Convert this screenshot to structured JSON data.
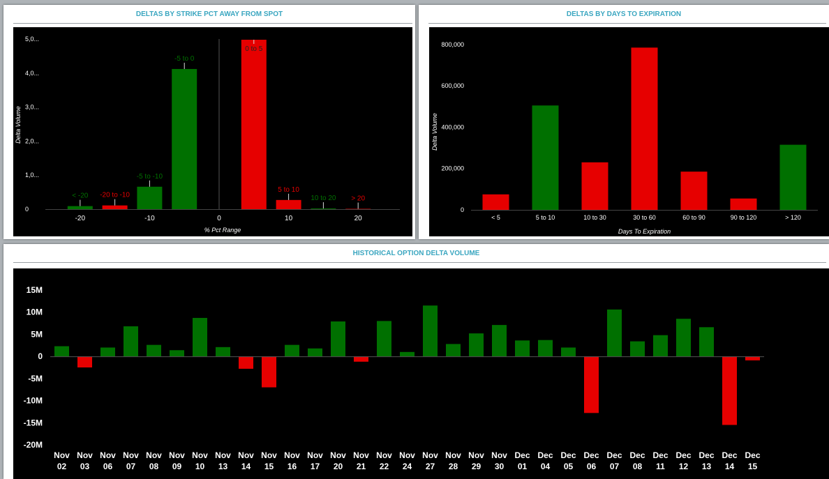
{
  "panels": {
    "strike_title": "DELTAS BY STRIKE PCT AWAY FROM SPOT",
    "dte_title": "DELTAS BY DAYS TO EXPIRATION",
    "hist_title": "HISTORICAL OPTION DELTA VOLUME"
  },
  "colors": {
    "positive": "#007000",
    "negative": "#e60000",
    "title": "#3aa6c0"
  },
  "chart_data": [
    {
      "type": "bar",
      "title": "DELTAS BY STRIKE PCT AWAY FROM SPOT",
      "xlabel": "% Pct Range",
      "ylabel": "Delta Volume",
      "ytick_labels": [
        "0",
        "1,0...",
        "2,0...",
        "3,0...",
        "4,0...",
        "5,0..."
      ],
      "yticks": [
        0,
        1000000,
        2000000,
        3000000,
        4000000,
        5000000
      ],
      "ylim": [
        0,
        5000000
      ],
      "xlim": [
        -25,
        25
      ],
      "xticks": [
        -20,
        -10,
        0,
        10,
        20
      ],
      "bars": [
        {
          "label": "< -20",
          "x": -20,
          "value": 90000,
          "sign": "positive"
        },
        {
          "label": "-20 to -10",
          "x": -15,
          "value": 110000,
          "sign": "negative"
        },
        {
          "label": "-5 to -10",
          "x": -10,
          "value": 660000,
          "sign": "positive"
        },
        {
          "label": "-5 to 0",
          "x": -5,
          "value": 4120000,
          "sign": "positive"
        },
        {
          "label": "0 to 5",
          "x": 5,
          "value": 4980000,
          "sign": "negative"
        },
        {
          "label": "5 to 10",
          "x": 10,
          "value": 270000,
          "sign": "negative"
        },
        {
          "label": "10 to 20",
          "x": 15,
          "value": 20000,
          "sign": "positive"
        },
        {
          "label": "> 20",
          "x": 20,
          "value": 10000,
          "sign": "negative"
        }
      ],
      "grid": false
    },
    {
      "type": "bar",
      "title": "DELTAS BY DAYS TO EXPIRATION",
      "xlabel": "Days To Expiration",
      "ylabel": "Delta Volume",
      "categories": [
        "< 5",
        "5 to 10",
        "10 to 30",
        "30 to 60",
        "60 to 90",
        "90 to 120",
        "> 120"
      ],
      "values": [
        75000,
        505000,
        230000,
        785000,
        185000,
        55000,
        315000
      ],
      "signs": [
        "negative",
        "positive",
        "negative",
        "negative",
        "negative",
        "negative",
        "positive"
      ],
      "ylim": [
        0,
        850000
      ],
      "yticks": [
        0,
        200000,
        400000,
        600000,
        800000
      ],
      "ytick_labels": [
        "0",
        "200,000",
        "400,000",
        "600,000",
        "800,000"
      ],
      "grid": false
    },
    {
      "type": "bar",
      "title": "HISTORICAL OPTION DELTA VOLUME",
      "xlabel": "",
      "ylabel": "",
      "categories": [
        [
          "Nov",
          "02"
        ],
        [
          "Nov",
          "03"
        ],
        [
          "Nov",
          "06"
        ],
        [
          "Nov",
          "07"
        ],
        [
          "Nov",
          "08"
        ],
        [
          "Nov",
          "09"
        ],
        [
          "Nov",
          "10"
        ],
        [
          "Nov",
          "13"
        ],
        [
          "Nov",
          "14"
        ],
        [
          "Nov",
          "15"
        ],
        [
          "Nov",
          "16"
        ],
        [
          "Nov",
          "17"
        ],
        [
          "Nov",
          "20"
        ],
        [
          "Nov",
          "21"
        ],
        [
          "Nov",
          "22"
        ],
        [
          "Nov",
          "24"
        ],
        [
          "Nov",
          "27"
        ],
        [
          "Nov",
          "28"
        ],
        [
          "Nov",
          "29"
        ],
        [
          "Nov",
          "30"
        ],
        [
          "Dec",
          "01"
        ],
        [
          "Dec",
          "04"
        ],
        [
          "Dec",
          "05"
        ],
        [
          "Dec",
          "06"
        ],
        [
          "Dec",
          "07"
        ],
        [
          "Dec",
          "08"
        ],
        [
          "Dec",
          "11"
        ],
        [
          "Dec",
          "12"
        ],
        [
          "Dec",
          "13"
        ],
        [
          "Dec",
          "14"
        ],
        [
          "Dec",
          "15"
        ]
      ],
      "values": [
        2.3,
        -2.5,
        2.0,
        6.8,
        2.6,
        1.4,
        8.7,
        2.1,
        -2.8,
        -7.0,
        2.6,
        1.8,
        7.9,
        -1.2,
        8.0,
        1.0,
        11.5,
        2.8,
        5.2,
        7.1,
        3.6,
        3.7,
        2.0,
        -12.8,
        10.6,
        3.4,
        4.8,
        8.5,
        6.6,
        -15.5,
        -0.9
      ],
      "value_unit": "M",
      "ylim": [
        -20,
        15
      ],
      "yticks": [
        15,
        10,
        5,
        0,
        -5,
        -10,
        -15,
        -20
      ],
      "ytick_labels": [
        "15M",
        "10M",
        "5M",
        "0",
        "-5M",
        "-10M",
        "-15M",
        "-20M"
      ],
      "grid": false
    }
  ]
}
